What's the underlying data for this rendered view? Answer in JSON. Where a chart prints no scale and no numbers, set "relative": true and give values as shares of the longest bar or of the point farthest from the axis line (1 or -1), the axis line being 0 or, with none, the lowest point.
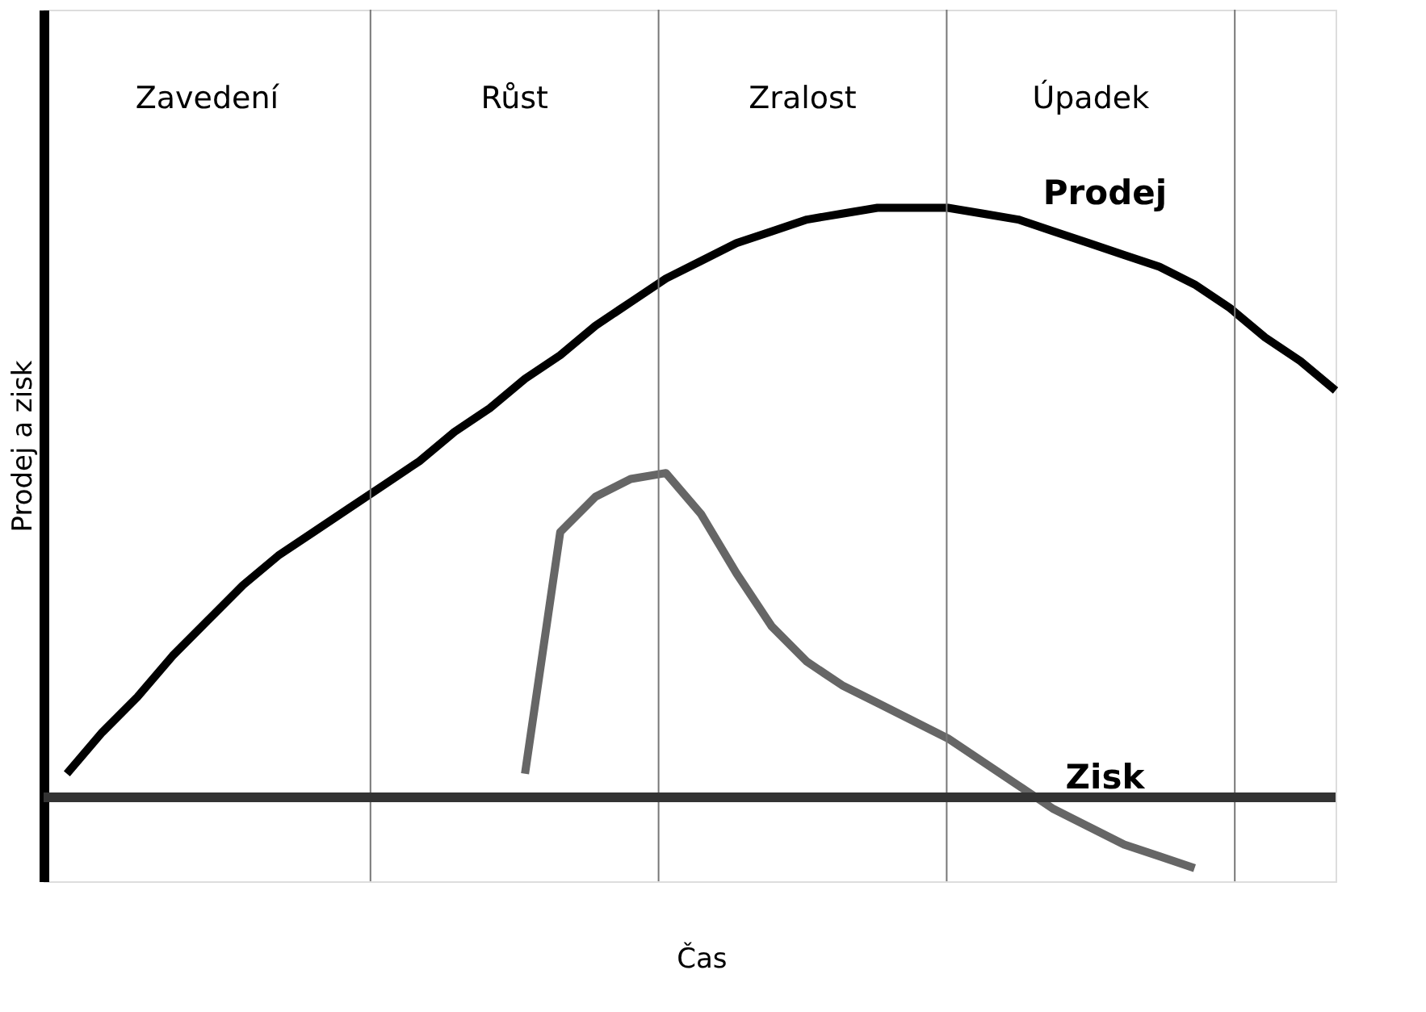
{
  "chart_data": {
    "type": "line",
    "relative": true,
    "xlabel": "Čas",
    "ylabel": "Prodej a zisk",
    "grid": false,
    "legend": false,
    "marker": "none",
    "line_style": "solid",
    "categories": [
      null,
      null,
      null,
      null,
      null,
      null,
      null,
      null,
      null,
      null,
      null,
      null,
      null,
      null,
      null,
      null,
      null,
      null,
      null,
      null,
      null,
      null,
      null,
      null,
      null,
      null,
      null,
      null,
      null,
      null,
      null,
      null,
      null,
      null,
      null,
      null,
      null
    ],
    "series": [
      {
        "name": "Prodej",
        "color": "#000000",
        "values": [
          0.04,
          0.11,
          0.17,
          0.24,
          0.3,
          0.36,
          0.41,
          0.45,
          0.49,
          0.53,
          0.57,
          0.62,
          0.66,
          0.71,
          0.75,
          0.8,
          0.84,
          0.88,
          0.91,
          0.94,
          0.96,
          0.98,
          0.99,
          1.0,
          1.0,
          1.0,
          0.99,
          0.98,
          0.96,
          0.94,
          0.92,
          0.9,
          0.87,
          0.83,
          0.78,
          0.74,
          0.69
        ]
      },
      {
        "name": "Zisk",
        "color": "#666666",
        "values": [
          null,
          null,
          null,
          null,
          null,
          null,
          null,
          null,
          null,
          null,
          null,
          null,
          null,
          0.04,
          0.45,
          0.51,
          0.54,
          0.55,
          0.48,
          0.38,
          0.29,
          0.23,
          0.19,
          0.16,
          0.13,
          0.1,
          0.06,
          0.02,
          -0.02,
          -0.05,
          -0.08,
          -0.1,
          -0.12,
          null,
          null,
          null,
          null
        ]
      }
    ],
    "annotations": [
      "Zavedení",
      "Růst",
      "Zralost",
      "Úpadek"
    ]
  }
}
